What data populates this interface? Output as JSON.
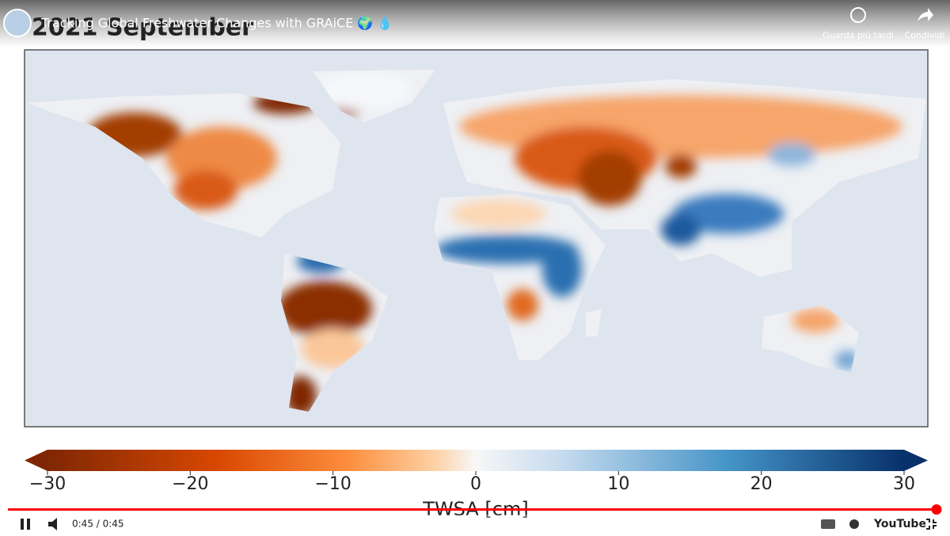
{
  "player": {
    "title": "Tracking Global Freshwater Changes with GRAiCE 🌍 💧",
    "save_label": "Guarda più tardi",
    "share_label": "Condividi",
    "time": "0:45 / 0:45",
    "logo": "YouTube"
  },
  "map": {
    "title": "2021 September",
    "colorbar": {
      "label": "TWSA [cm]",
      "lim": [
        -30,
        30
      ],
      "ticks": [
        {
          "value": -30,
          "label": "−30"
        },
        {
          "value": -20,
          "label": "−20"
        },
        {
          "value": -10,
          "label": "−10"
        },
        0,
        10,
        20,
        30
      ]
    }
  }
}
